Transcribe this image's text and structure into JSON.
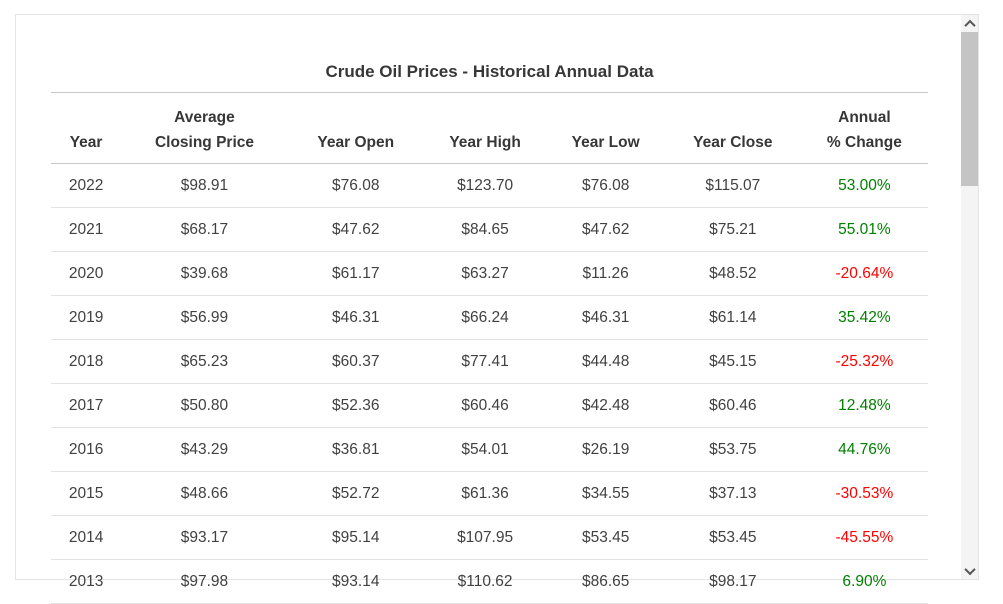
{
  "table": {
    "title": "Crude Oil Prices - Historical Annual Data",
    "columns": [
      {
        "line1": "",
        "line2": "Year"
      },
      {
        "line1": "Average",
        "line2": "Closing Price"
      },
      {
        "line1": "",
        "line2": "Year Open"
      },
      {
        "line1": "",
        "line2": "Year High"
      },
      {
        "line1": "",
        "line2": "Year Low"
      },
      {
        "line1": "",
        "line2": "Year Close"
      },
      {
        "line1": "Annual",
        "line2": "% Change"
      }
    ],
    "rows": [
      {
        "year": "2022",
        "avg": "$98.91",
        "open": "$76.08",
        "high": "$123.70",
        "low": "$76.08",
        "close": "$115.07",
        "change": "53.00%",
        "trend": "up"
      },
      {
        "year": "2021",
        "avg": "$68.17",
        "open": "$47.62",
        "high": "$84.65",
        "low": "$47.62",
        "close": "$75.21",
        "change": "55.01%",
        "trend": "up"
      },
      {
        "year": "2020",
        "avg": "$39.68",
        "open": "$61.17",
        "high": "$63.27",
        "low": "$11.26",
        "close": "$48.52",
        "change": "-20.64%",
        "trend": "down"
      },
      {
        "year": "2019",
        "avg": "$56.99",
        "open": "$46.31",
        "high": "$66.24",
        "low": "$46.31",
        "close": "$61.14",
        "change": "35.42%",
        "trend": "up"
      },
      {
        "year": "2018",
        "avg": "$65.23",
        "open": "$60.37",
        "high": "$77.41",
        "low": "$44.48",
        "close": "$45.15",
        "change": "-25.32%",
        "trend": "down"
      },
      {
        "year": "2017",
        "avg": "$50.80",
        "open": "$52.36",
        "high": "$60.46",
        "low": "$42.48",
        "close": "$60.46",
        "change": "12.48%",
        "trend": "up"
      },
      {
        "year": "2016",
        "avg": "$43.29",
        "open": "$36.81",
        "high": "$54.01",
        "low": "$26.19",
        "close": "$53.75",
        "change": "44.76%",
        "trend": "up"
      },
      {
        "year": "2015",
        "avg": "$48.66",
        "open": "$52.72",
        "high": "$61.36",
        "low": "$34.55",
        "close": "$37.13",
        "change": "-30.53%",
        "trend": "down"
      },
      {
        "year": "2014",
        "avg": "$93.17",
        "open": "$95.14",
        "high": "$107.95",
        "low": "$53.45",
        "close": "$53.45",
        "change": "-45.55%",
        "trend": "down"
      },
      {
        "year": "2013",
        "avg": "$97.98",
        "open": "$93.14",
        "high": "$110.62",
        "low": "$86.65",
        "close": "$98.17",
        "change": "6.90%",
        "trend": "up"
      }
    ]
  },
  "scrollbar": {
    "up_icon": "chevron-up-icon",
    "down_icon": "chevron-down-icon"
  },
  "colors": {
    "positive_change": "#008000",
    "negative_change": "#ff0000",
    "header_text": "#373737",
    "body_text": "#414141",
    "divider": "#e2e2e2",
    "header_rule": "#c9c9c9",
    "frame_border": "#e4e4e4",
    "scrollbar_track": "#f4f4f4",
    "scrollbar_thumb": "#c4c4c4"
  }
}
